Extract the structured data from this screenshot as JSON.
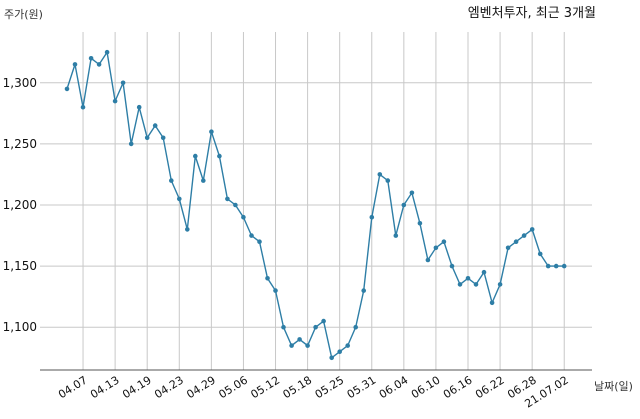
{
  "chart_data": {
    "type": "line",
    "title": "엠벤처투자, 최근 3개월",
    "ylabel": "주가(원)",
    "xlabel": "날짜(일)",
    "ylim": [
      1065,
      1335
    ],
    "y_ticks": [
      1100,
      1150,
      1200,
      1250,
      1300
    ],
    "y_tick_labels": [
      "1,100",
      "1,150",
      "1,200",
      "1,250",
      "1,300"
    ],
    "x_tick_labels": [
      "04.07",
      "04.13",
      "04.19",
      "04.23",
      "04.29",
      "05.06",
      "05.12",
      "05.18",
      "05.25",
      "05.31",
      "06.04",
      "06.10",
      "06.16",
      "06.22",
      "06.28",
      "21.07.02"
    ],
    "x_tick_index": [
      2,
      6,
      10,
      14,
      18,
      22,
      26,
      30,
      34,
      38,
      42,
      46,
      50,
      54,
      58,
      62
    ],
    "grid": true,
    "color": "#2e7ea6",
    "series": [
      {
        "values": [
          1295,
          1315,
          1280,
          1320,
          1315,
          1325,
          1285,
          1300,
          1250,
          1280,
          1255,
          1265,
          1255,
          1220,
          1205,
          1180,
          1240,
          1220,
          1260,
          1240,
          1205,
          1200,
          1190,
          1175,
          1170,
          1140,
          1130,
          1100,
          1085,
          1090,
          1085,
          1100,
          1105,
          1075,
          1080,
          1085,
          1100,
          1130,
          1190,
          1225,
          1220,
          1175,
          1200,
          1210,
          1185,
          1155,
          1165,
          1170,
          1150,
          1135,
          1140,
          1135,
          1145,
          1120,
          1135,
          1165,
          1170,
          1175,
          1180,
          1160,
          1150,
          1150,
          1150
        ]
      }
    ]
  }
}
